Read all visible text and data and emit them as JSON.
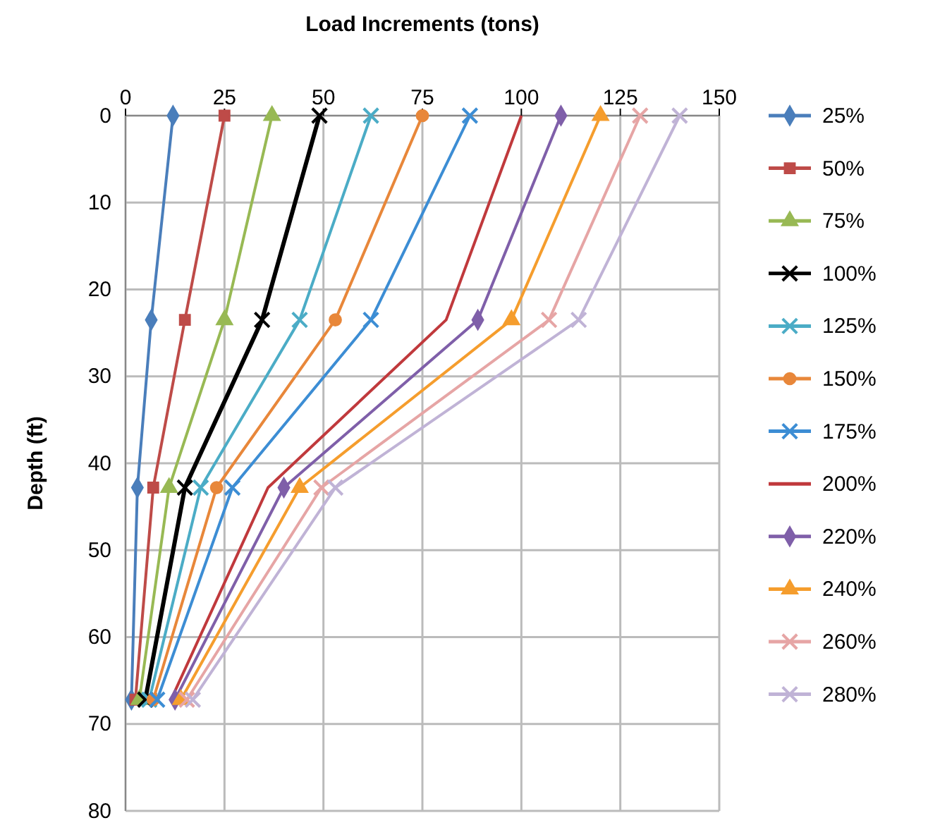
{
  "chart_data": {
    "type": "line",
    "xlabel": "Load Increments (tons)",
    "ylabel": "Depth (ft)",
    "xlim": [
      0,
      150
    ],
    "xticks": [
      0,
      25,
      50,
      75,
      100,
      125,
      150
    ],
    "ylim": [
      80,
      0
    ],
    "yticks": [
      0,
      10,
      20,
      30,
      40,
      50,
      60,
      70,
      80
    ],
    "grid": true,
    "legend": "right",
    "line_style": "solid",
    "series": [
      {
        "name": "25%",
        "color": "#4a7ebb",
        "marker": "diamond",
        "x": [
          12,
          6.5,
          3,
          1.5
        ],
        "values": [
          0,
          23.5,
          42.8,
          67.2
        ]
      },
      {
        "name": "50%",
        "color": "#be4b48",
        "marker": "square",
        "x": [
          25,
          15,
          7,
          2.5
        ],
        "values": [
          0,
          23.5,
          42.8,
          67.2
        ]
      },
      {
        "name": "75%",
        "color": "#98b954",
        "marker": "triangle",
        "x": [
          37,
          25,
          11,
          3.5
        ],
        "values": [
          0,
          23.5,
          42.8,
          67.2
        ]
      },
      {
        "name": "100%",
        "color": "#000000",
        "marker": "cross",
        "x": [
          49,
          34.5,
          15,
          5
        ],
        "values": [
          0,
          23.5,
          42.8,
          67.2
        ]
      },
      {
        "name": "125%",
        "color": "#4bacc6",
        "marker": "cross",
        "x": [
          62,
          44,
          19,
          6
        ],
        "values": [
          0,
          23.5,
          42.8,
          67.2
        ]
      },
      {
        "name": "150%",
        "color": "#e8873a",
        "marker": "circle",
        "x": [
          75,
          53,
          23,
          7
        ],
        "values": [
          0,
          23.5,
          42.8,
          67.2
        ]
      },
      {
        "name": "175%",
        "color": "#3c8dd4",
        "marker": "cross",
        "x": [
          87,
          62,
          27,
          8
        ],
        "values": [
          0,
          23.5,
          42.8,
          67.2
        ]
      },
      {
        "name": "200%",
        "color": "#c0393c",
        "marker": "none",
        "x": [
          100,
          81,
          36,
          11.5
        ],
        "values": [
          0,
          23.5,
          42.8,
          67.2
        ]
      },
      {
        "name": "220%",
        "color": "#7f5fa9",
        "marker": "diamond",
        "x": [
          110,
          89,
          40,
          12.5
        ],
        "values": [
          0,
          23.5,
          42.8,
          67.2
        ]
      },
      {
        "name": "240%",
        "color": "#f59d2d",
        "marker": "triangle",
        "x": [
          120,
          97.5,
          44,
          14
        ],
        "values": [
          0,
          23.5,
          42.8,
          67.2
        ]
      },
      {
        "name": "260%",
        "color": "#e6a5a5",
        "marker": "cross",
        "x": [
          130,
          107,
          49.5,
          15.5
        ],
        "values": [
          0,
          23.5,
          42.8,
          67.2
        ]
      },
      {
        "name": "280%",
        "color": "#c0b3d6",
        "marker": "cross",
        "x": [
          140,
          114.5,
          53,
          17
        ],
        "values": [
          0,
          23.5,
          42.8,
          67.2
        ]
      }
    ]
  }
}
